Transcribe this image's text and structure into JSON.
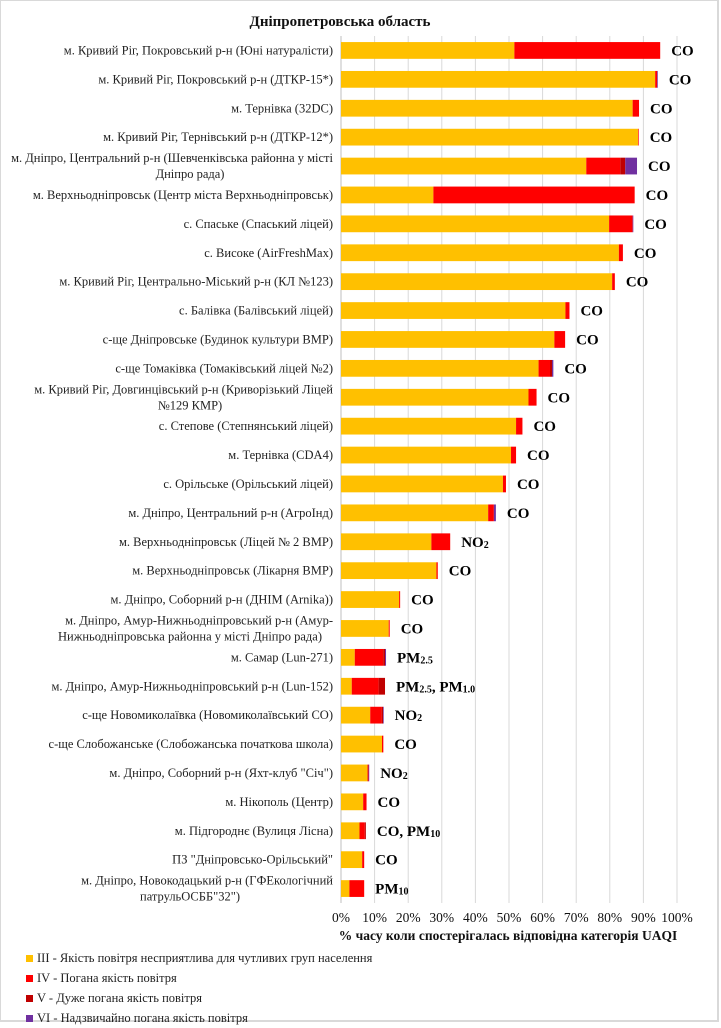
{
  "chart_data": {
    "type": "bar",
    "orientation": "horizontal",
    "stacked": true,
    "title": "Дніпропетровська  область",
    "xlabel": "% часу коли спостерігалась відповідна категорія UAQI",
    "ylabel": "",
    "xlim": [
      0,
      100
    ],
    "x_ticks": [
      "0%",
      "10%",
      "20%",
      "30%",
      "40%",
      "50%",
      "60%",
      "70%",
      "80%",
      "90%",
      "100%"
    ],
    "grid": true,
    "legend_position": "bottom-left",
    "categories": [
      "м. Кривий  Ріг, Покровський р-н (Юні натуралісти)",
      "м. Кривий  Ріг, Покровський р-н (ДТКР-15*)",
      "м. Тернівка  (32DC)",
      "м. Кривий  Ріг, Тернівський  р-н (ДТКР-12*)",
      "м. Дніпро, Центральний  р-н (Шевченківська районна  у місті Дніпро рада)",
      "м. Верхньодніпровськ  (Центр міста Верхньодніпровськ)",
      "с. Спаське (Спаський  ліцей)",
      "с. Високе (AirFreshMax)",
      "м. Кривий  Ріг, Центрально-Міський  р-н (КЛ №123)",
      "с. Балівка (Балівський ліцей)",
      "с-ще Дніпровське (Будинок  культури  ВМР)",
      "с-ще Томаківка (Томаківський ліцей №2)",
      "м. Кривий  Ріг, Довгинцівський  р-н (Криворізький  Ліцей №129 КМР)",
      "с. Степове (Степнянський  ліцей)",
      "м. Тернівка  (CDA4)",
      "с. Орільське (Орільський ліцей)",
      "м. Дніпро, Центральний  р-н (АгроІнд)",
      "м. Верхньодніпровськ  (Ліцей № 2 ВМР)",
      "м. Верхньодніпровськ  (Лікарня ВМР)",
      "м. Дніпро, Соборний  р-н (ДНІМ (Arnika))",
      "м. Дніпро, Амур-Нижньодніпровський  р-н (Амур-Нижньодніпровська  районна  у місті Дніпро рада)",
      "м. Самар (Lun-271)",
      "м. Дніпро, Амур-Нижньодніпровський  р-н (Lun-152)",
      "с-ще Новомиколаївка (Новомиколаївський  СО)",
      "с-ще Слобожанське (Слобожанська  початкова школа)",
      "м. Дніпро, Соборний  р-н (Яхт-клуб \"Січ\")",
      "м. Нікополь (Центр)",
      "м. Підгороднє (Вулиця  Лісна)",
      "ПЗ \"Дніпровсько-Орільський\"",
      "м. Дніпро, Новокодацький р-н (ГФЕкологічний патрульОСББ\"32\")"
    ],
    "category_lines": [
      [
        "м. Кривий  Ріг, Покровський р-н (Юні натуралісти)"
      ],
      [
        "м. Кривий  Ріг, Покровський р-н (ДТКР-15*)"
      ],
      [
        "м. Тернівка  (32DC)"
      ],
      [
        "м. Кривий  Ріг, Тернівський  р-н (ДТКР-12*)"
      ],
      [
        "м. Дніпро, Центральний  р-н (Шевченківська районна  у місті",
        "Дніпро рада)"
      ],
      [
        "м. Верхньодніпровськ  (Центр міста Верхньодніпровськ)"
      ],
      [
        "с. Спаське (Спаський  ліцей)"
      ],
      [
        "с. Високе (AirFreshMax)"
      ],
      [
        "м. Кривий  Ріг, Центрально-Міський  р-н (КЛ №123)"
      ],
      [
        "с. Балівка (Балівський ліцей)"
      ],
      [
        "с-ще Дніпровське (Будинок  культури  ВМР)"
      ],
      [
        "с-ще Томаківка (Томаківський ліцей №2)"
      ],
      [
        "м. Кривий  Ріг, Довгинцівський  р-н (Криворізький  Ліцей",
        "№129 КМР)"
      ],
      [
        "с. Степове (Степнянський  ліцей)"
      ],
      [
        "м. Тернівка  (CDA4)"
      ],
      [
        "с. Орільське (Орільський ліцей)"
      ],
      [
        "м. Дніпро, Центральний  р-н (АгроІнд)"
      ],
      [
        "м. Верхньодніпровськ  (Ліцей № 2 ВМР)"
      ],
      [
        "м. Верхньодніпровськ  (Лікарня ВМР)"
      ],
      [
        "м. Дніпро, Соборний  р-н (ДНІМ (Arnika))"
      ],
      [
        "м. Дніпро, Амур-Нижньодніпровський  р-н (Амур-",
        "Нижньодніпровська  районна  у місті Дніпро рада)"
      ],
      [
        "м. Самар (Lun-271)"
      ],
      [
        "м. Дніпро, Амур-Нижньодніпровський  р-н (Lun-152)"
      ],
      [
        "с-ще Новомиколаївка (Новомиколаївський  СО)"
      ],
      [
        "с-ще Слобожанське (Слобожанська  початкова школа)"
      ],
      [
        "м. Дніпро, Соборний  р-н (Яхт-клуб \"Січ\")"
      ],
      [
        "м. Нікополь (Центр)"
      ],
      [
        "м. Підгороднє (Вулиця  Лісна)"
      ],
      [
        "ПЗ \"Дніпровсько-Орільський\""
      ],
      [
        "м. Дніпро, Новокодацький р-н (ГФЕкологічний",
        "патрульОСББ\"32\")"
      ]
    ],
    "series": [
      {
        "name": "III - Якість повітря  несприятлива  для чутливих  груп  населення",
        "color": "#FFC000",
        "values": [
          51.6,
          93.5,
          86.8,
          88.4,
          73.0,
          27.5,
          79.8,
          82.7,
          80.7,
          66.8,
          63.5,
          58.8,
          55.8,
          52.1,
          50.6,
          48.2,
          43.8,
          26.9,
          28.4,
          17.3,
          14.2,
          4.1,
          3.2,
          8.7,
          12.2,
          7.9,
          6.6,
          5.5,
          6.3,
          2.5
        ]
      },
      {
        "name": "IV - Погана якість повітря",
        "color": "#FF0000",
        "values": [
          43.4,
          0.6,
          1.9,
          0.2,
          10.1,
          59.9,
          7.0,
          1.2,
          0.8,
          1.2,
          3.2,
          3.4,
          2.4,
          1.9,
          1.5,
          0.9,
          1.7,
          5.6,
          0.4,
          0.3,
          0.3,
          8.5,
          8.0,
          3.4,
          0.4,
          0.3,
          1.0,
          1.6,
          0.6,
          4.4
        ]
      },
      {
        "name": "V - Дуже погана  якість повітря",
        "color": "#C00000",
        "values": [
          0,
          0,
          0,
          0,
          1.5,
          0,
          0,
          0,
          0,
          0,
          0,
          0.6,
          0,
          0,
          0,
          0,
          0,
          0,
          0,
          0,
          0,
          0.5,
          1.9,
          0.4,
          0,
          0,
          0,
          0.3,
          0,
          0
        ]
      },
      {
        "name": "VI - Надзвичайно  погана  якість повітря",
        "color": "#7030A0",
        "values": [
          0,
          0.2,
          0,
          0,
          3.5,
          0,
          0.2,
          0,
          0,
          0,
          0,
          0.4,
          0,
          0,
          0,
          0,
          0.6,
          0,
          0,
          0,
          0,
          0.3,
          0,
          0.2,
          0,
          0.2,
          0,
          0,
          0,
          0
        ]
      }
    ],
    "annotations": [
      {
        "main": "CO",
        "sub": ""
      },
      {
        "main": "CO",
        "sub": ""
      },
      {
        "main": "CO",
        "sub": ""
      },
      {
        "main": "CO",
        "sub": ""
      },
      {
        "main": "CO",
        "sub": ""
      },
      {
        "main": "CO",
        "sub": ""
      },
      {
        "main": "CO",
        "sub": ""
      },
      {
        "main": "CO",
        "sub": ""
      },
      {
        "main": "CO",
        "sub": ""
      },
      {
        "main": "CO",
        "sub": ""
      },
      {
        "main": "CO",
        "sub": ""
      },
      {
        "main": "CO",
        "sub": ""
      },
      {
        "main": "CO",
        "sub": ""
      },
      {
        "main": "CO",
        "sub": ""
      },
      {
        "main": "CO",
        "sub": ""
      },
      {
        "main": "CO",
        "sub": ""
      },
      {
        "main": "CO",
        "sub": ""
      },
      {
        "main": "NO",
        "sub": "2"
      },
      {
        "main": "CO",
        "sub": ""
      },
      {
        "main": "CO",
        "sub": ""
      },
      {
        "main": "CO",
        "sub": ""
      },
      {
        "main": "PM",
        "sub": "2.5"
      },
      {
        "main": "PM",
        "sub": "2.5",
        "main2": ", PM",
        "sub2": "1.0"
      },
      {
        "main": "NO",
        "sub": "2"
      },
      {
        "main": "CO",
        "sub": ""
      },
      {
        "main": "NO",
        "sub": "2"
      },
      {
        "main": "CO",
        "sub": ""
      },
      {
        "main": "CO, PM",
        "sub": "10"
      },
      {
        "main": "CO",
        "sub": ""
      },
      {
        "main": "PM",
        "sub": "10"
      }
    ]
  }
}
